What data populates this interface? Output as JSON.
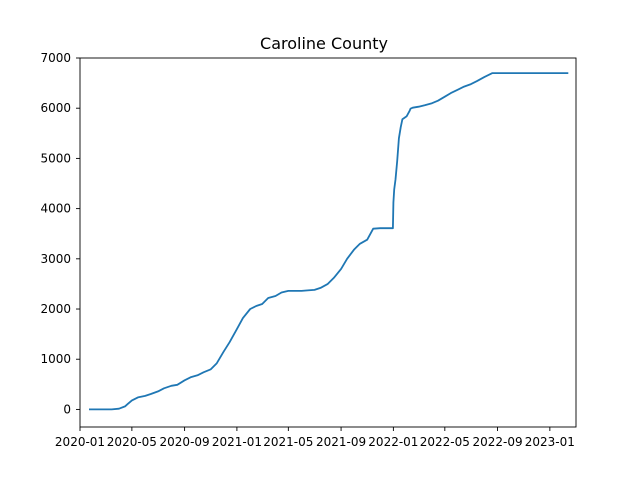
{
  "chart_data": {
    "type": "line",
    "title": "Caroline County",
    "xlabel": "",
    "ylabel": "",
    "grid": false,
    "line_color": "#1f77b4",
    "ylim": [
      -350,
      7000
    ],
    "xlim": [
      "2020-01-01",
      "2023-03-03"
    ],
    "y_ticks": [
      0,
      1000,
      2000,
      3000,
      4000,
      5000,
      6000,
      7000
    ],
    "y_tick_labels": [
      "0",
      "1000",
      "2000",
      "3000",
      "4000",
      "5000",
      "6000",
      "7000"
    ],
    "x_ticks": [
      "2020-01-01",
      "2020-05-01",
      "2020-09-01",
      "2021-01-01",
      "2021-05-01",
      "2021-09-01",
      "2022-01-01",
      "2022-05-01",
      "2022-09-01",
      "2023-01-01"
    ],
    "x_tick_labels": [
      "2020-01",
      "2020-05",
      "2020-09",
      "2021-01",
      "2021-05",
      "2021-09",
      "2022-01",
      "2022-05",
      "2022-09",
      "2023-01"
    ],
    "series": [
      {
        "x": [
          "2020-01-22",
          "2020-03-15",
          "2020-04-01",
          "2020-04-15",
          "2020-04-20",
          "2020-05-01",
          "2020-05-15",
          "2020-06-01",
          "2020-06-15",
          "2020-07-01",
          "2020-07-15",
          "2020-08-01",
          "2020-08-15",
          "2020-09-01",
          "2020-09-15",
          "2020-10-01",
          "2020-10-15",
          "2020-11-01",
          "2020-11-15",
          "2020-12-01",
          "2020-12-15",
          "2021-01-01",
          "2021-01-15",
          "2021-02-01",
          "2021-02-15",
          "2021-03-01",
          "2021-03-15",
          "2021-04-01",
          "2021-04-15",
          "2021-05-01",
          "2021-05-15",
          "2021-06-01",
          "2021-06-15",
          "2021-07-01",
          "2021-07-15",
          "2021-08-01",
          "2021-08-15",
          "2021-09-01",
          "2021-09-15",
          "2021-10-01",
          "2021-10-15",
          "2021-11-01",
          "2021-11-15",
          "2021-12-01",
          "2021-12-31",
          "2022-01-01",
          "2022-01-03",
          "2022-01-06",
          "2022-01-10",
          "2022-01-14",
          "2022-01-18",
          "2022-01-22",
          "2022-02-01",
          "2022-02-08",
          "2022-02-10",
          "2022-02-15",
          "2022-03-01",
          "2022-03-15",
          "2022-04-01",
          "2022-04-15",
          "2022-05-01",
          "2022-05-15",
          "2022-06-01",
          "2022-06-15",
          "2022-07-01",
          "2022-07-15",
          "2022-08-01",
          "2022-08-20",
          "2022-09-01",
          "2022-10-01",
          "2022-12-01",
          "2023-01-01",
          "2023-02-01",
          "2023-02-13"
        ],
        "values": [
          0,
          0,
          15,
          60,
          100,
          180,
          240,
          270,
          310,
          360,
          420,
          470,
          490,
          580,
          640,
          680,
          740,
          800,
          920,
          1150,
          1340,
          1600,
          1820,
          2000,
          2060,
          2100,
          2220,
          2260,
          2330,
          2360,
          2360,
          2360,
          2370,
          2380,
          2420,
          2500,
          2620,
          2800,
          3000,
          3180,
          3300,
          3380,
          3600,
          3610,
          3610,
          4120,
          4380,
          4580,
          4950,
          5400,
          5620,
          5780,
          5840,
          5950,
          5990,
          6010,
          6030,
          6060,
          6100,
          6150,
          6230,
          6300,
          6370,
          6430,
          6480,
          6540,
          6620,
          6700,
          6700,
          6700,
          6700,
          6700,
          6700,
          6700
        ]
      }
    ]
  }
}
